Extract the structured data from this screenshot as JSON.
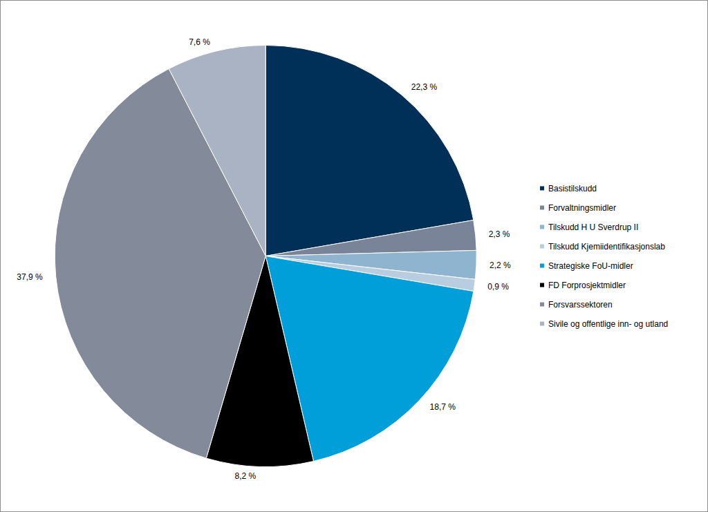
{
  "chart_data": {
    "type": "pie",
    "categories": [
      "Basistilskudd",
      "Forvaltningsmidler",
      "Tilskudd H U Sverdrup II",
      "Tilskudd Kjemiidentifikasjonslab",
      "Strategiske FoU-midler",
      "FD Forprosjektmidler",
      "Forsvarssektoren",
      "Sivile og offentlige inn- og utland"
    ],
    "values": [
      22.3,
      2.3,
      2.2,
      0.9,
      18.7,
      8.2,
      37.9,
      7.6
    ],
    "value_labels": [
      "22,3 %",
      "2,3 %",
      "2,2 %",
      "0,9 %",
      "18,7 %",
      "8,2 %",
      "37,9 %",
      "7,6 %"
    ],
    "colors": [
      "#003057",
      "#7a8499",
      "#8fb4cf",
      "#b8cde0",
      "#009fd9",
      "#000000",
      "#838b9a",
      "#aab3c4"
    ],
    "data_labels": true,
    "legend": "right"
  }
}
